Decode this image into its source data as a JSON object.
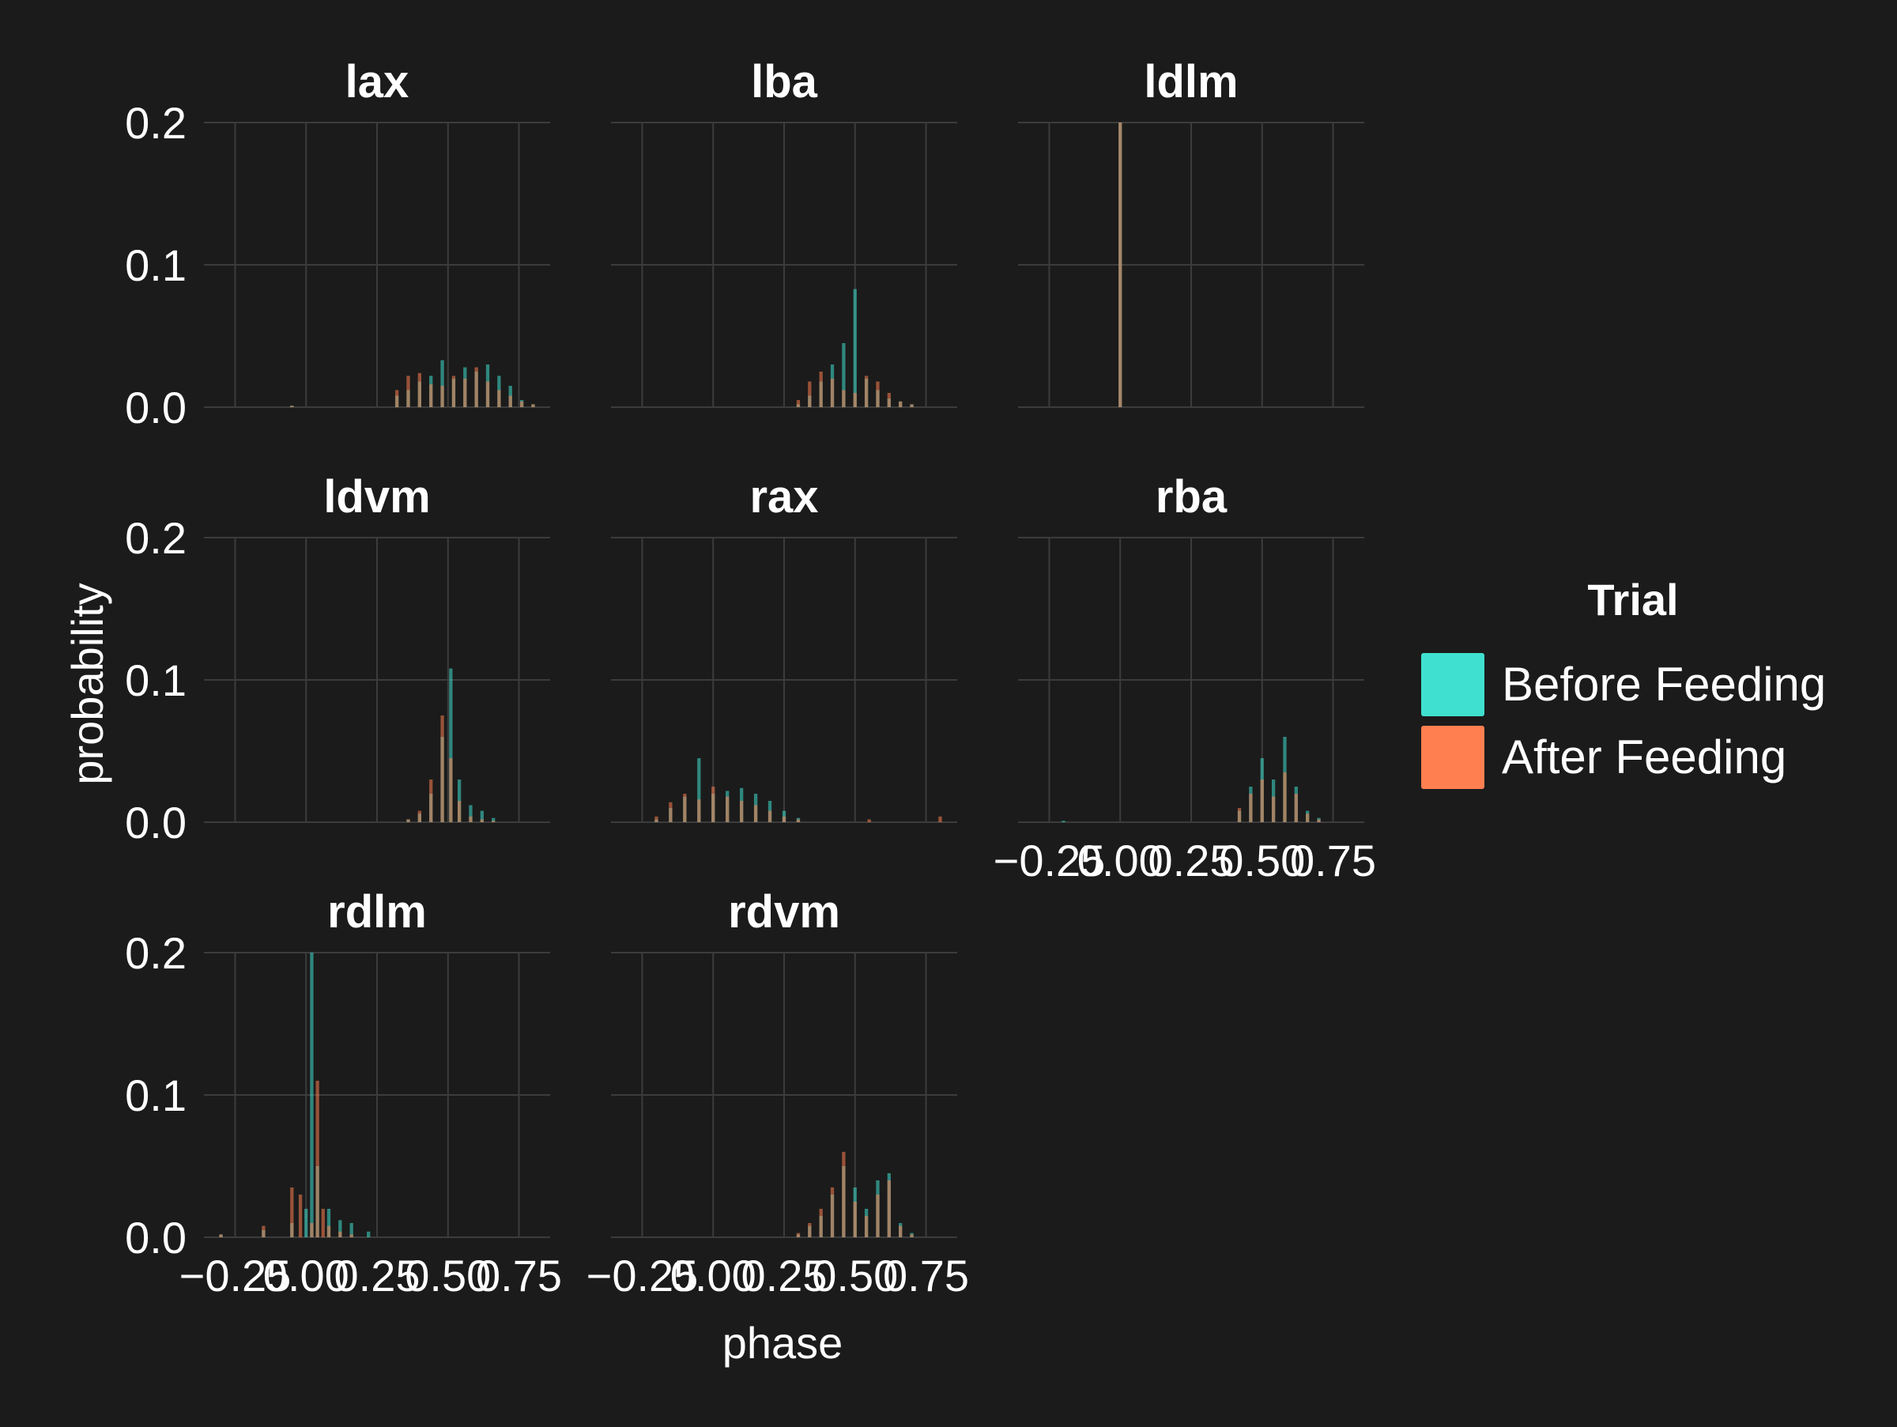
{
  "legend": {
    "title": "Trial",
    "items": [
      {
        "label": "Before Feeding",
        "color": "#40e0d0"
      },
      {
        "label": "After Feeding",
        "color": "#ff7f50"
      }
    ],
    "position": "right"
  },
  "axis": {
    "xlabel": "phase",
    "ylabel": "probability",
    "x_ticks": [
      -0.25,
      0.0,
      0.25,
      0.5,
      0.75
    ],
    "x_tick_labels": [
      "−0.25",
      "0.00",
      "0.25",
      "0.50",
      "0.75"
    ],
    "y_ticks": [
      0.0,
      0.1,
      0.2
    ],
    "y_tick_labels": [
      "0.0",
      "0.1",
      "0.2"
    ]
  },
  "theme": {
    "background": "#1b1b1b",
    "grid_color": "#3c3c3c",
    "text_color": "#ffffff",
    "before_color": "#40e0d0",
    "after_color": "#ff7f50"
  },
  "chart_data": {
    "type": "histogram",
    "xlabel": "phase",
    "ylabel": "probability",
    "xlim": [
      -0.36,
      0.86
    ],
    "ylim": [
      0,
      0.2
    ],
    "grid": true,
    "legend_title": "Trial",
    "legend_position": "right",
    "overlay": "semi-transparent overlapping histograms",
    "facets": [
      {
        "name": "lax",
        "series": [
          {
            "name": "Before Feeding",
            "x": [
              -0.05,
              0.32,
              0.36,
              0.4,
              0.44,
              0.48,
              0.52,
              0.56,
              0.6,
              0.64,
              0.68,
              0.72,
              0.76,
              0.8
            ],
            "y": [
              0.001,
              0.008,
              0.012,
              0.018,
              0.022,
              0.033,
              0.02,
              0.028,
              0.025,
              0.03,
              0.022,
              0.015,
              0.005,
              0.002
            ]
          },
          {
            "name": "After Feeding",
            "x": [
              -0.05,
              0.32,
              0.36,
              0.4,
              0.44,
              0.48,
              0.52,
              0.56,
              0.6,
              0.64,
              0.68,
              0.72,
              0.76,
              0.8
            ],
            "y": [
              0.001,
              0.012,
              0.022,
              0.024,
              0.016,
              0.015,
              0.022,
              0.02,
              0.028,
              0.018,
              0.012,
              0.008,
              0.004,
              0.002
            ]
          }
        ]
      },
      {
        "name": "lba",
        "series": [
          {
            "name": "Before Feeding",
            "x": [
              0.3,
              0.34,
              0.38,
              0.42,
              0.46,
              0.5,
              0.54,
              0.58,
              0.62,
              0.66,
              0.7
            ],
            "y": [
              0.002,
              0.008,
              0.018,
              0.03,
              0.045,
              0.083,
              0.02,
              0.012,
              0.006,
              0.004,
              0.002
            ]
          },
          {
            "name": "After Feeding",
            "x": [
              0.3,
              0.34,
              0.38,
              0.42,
              0.46,
              0.5,
              0.54,
              0.58,
              0.62,
              0.66,
              0.7
            ],
            "y": [
              0.005,
              0.018,
              0.025,
              0.02,
              0.012,
              0.01,
              0.022,
              0.018,
              0.01,
              0.004,
              0.002
            ]
          }
        ]
      },
      {
        "name": "ldlm",
        "series": [
          {
            "name": "Before Feeding",
            "x": [
              0.0
            ],
            "y": [
              0.2
            ]
          },
          {
            "name": "After Feeding",
            "x": [
              0.0
            ],
            "y": [
              0.2
            ]
          }
        ]
      },
      {
        "name": "ldvm",
        "series": [
          {
            "name": "Before Feeding",
            "x": [
              0.36,
              0.4,
              0.44,
              0.48,
              0.51,
              0.54,
              0.58,
              0.62,
              0.66
            ],
            "y": [
              0.002,
              0.006,
              0.02,
              0.06,
              0.108,
              0.03,
              0.012,
              0.008,
              0.003
            ]
          },
          {
            "name": "After Feeding",
            "x": [
              0.36,
              0.4,
              0.44,
              0.48,
              0.51,
              0.54,
              0.58,
              0.62,
              0.66
            ],
            "y": [
              0.002,
              0.008,
              0.03,
              0.075,
              0.045,
              0.015,
              0.004,
              0.002,
              0.001
            ]
          }
        ]
      },
      {
        "name": "rax",
        "series": [
          {
            "name": "Before Feeding",
            "x": [
              -0.2,
              -0.15,
              -0.1,
              -0.05,
              0.0,
              0.05,
              0.1,
              0.15,
              0.2,
              0.25,
              0.3
            ],
            "y": [
              0.002,
              0.01,
              0.018,
              0.045,
              0.02,
              0.022,
              0.024,
              0.02,
              0.015,
              0.008,
              0.003
            ]
          },
          {
            "name": "After Feeding",
            "x": [
              -0.2,
              -0.15,
              -0.1,
              -0.05,
              0.0,
              0.05,
              0.1,
              0.15,
              0.2,
              0.25,
              0.3,
              0.55,
              0.8
            ],
            "y": [
              0.004,
              0.014,
              0.02,
              0.016,
              0.025,
              0.018,
              0.015,
              0.012,
              0.008,
              0.004,
              0.002,
              0.002,
              0.004
            ]
          }
        ]
      },
      {
        "name": "rba",
        "series": [
          {
            "name": "Before Feeding",
            "x": [
              -0.2,
              0.42,
              0.46,
              0.5,
              0.54,
              0.58,
              0.62,
              0.66,
              0.7
            ],
            "y": [
              0.001,
              0.008,
              0.025,
              0.045,
              0.03,
              0.06,
              0.025,
              0.008,
              0.003
            ]
          },
          {
            "name": "After Feeding",
            "x": [
              0.42,
              0.46,
              0.5,
              0.54,
              0.58,
              0.62,
              0.66,
              0.7
            ],
            "y": [
              0.01,
              0.02,
              0.03,
              0.018,
              0.035,
              0.02,
              0.006,
              0.002
            ]
          }
        ]
      },
      {
        "name": "rdlm",
        "series": [
          {
            "name": "Before Feeding",
            "x": [
              -0.3,
              -0.15,
              -0.05,
              0.0,
              0.02,
              0.04,
              0.08,
              0.12,
              0.16,
              0.22
            ],
            "y": [
              0.002,
              0.005,
              0.01,
              0.02,
              0.2,
              0.05,
              0.02,
              0.012,
              0.01,
              0.004
            ]
          },
          {
            "name": "After Feeding",
            "x": [
              -0.3,
              -0.15,
              -0.05,
              -0.02,
              0.02,
              0.04,
              0.06,
              0.08,
              0.12,
              0.16
            ],
            "y": [
              0.002,
              0.008,
              0.035,
              0.03,
              0.01,
              0.11,
              0.02,
              0.008,
              0.004,
              0.002
            ]
          }
        ]
      },
      {
        "name": "rdvm",
        "series": [
          {
            "name": "Before Feeding",
            "x": [
              0.3,
              0.34,
              0.38,
              0.42,
              0.46,
              0.5,
              0.54,
              0.58,
              0.62,
              0.66,
              0.7
            ],
            "y": [
              0.002,
              0.008,
              0.015,
              0.03,
              0.05,
              0.035,
              0.02,
              0.04,
              0.045,
              0.01,
              0.003
            ]
          },
          {
            "name": "After Feeding",
            "x": [
              0.3,
              0.34,
              0.38,
              0.42,
              0.46,
              0.5,
              0.54,
              0.58,
              0.62,
              0.66,
              0.7
            ],
            "y": [
              0.003,
              0.01,
              0.02,
              0.035,
              0.06,
              0.025,
              0.015,
              0.03,
              0.04,
              0.008,
              0.002
            ]
          }
        ]
      }
    ]
  }
}
